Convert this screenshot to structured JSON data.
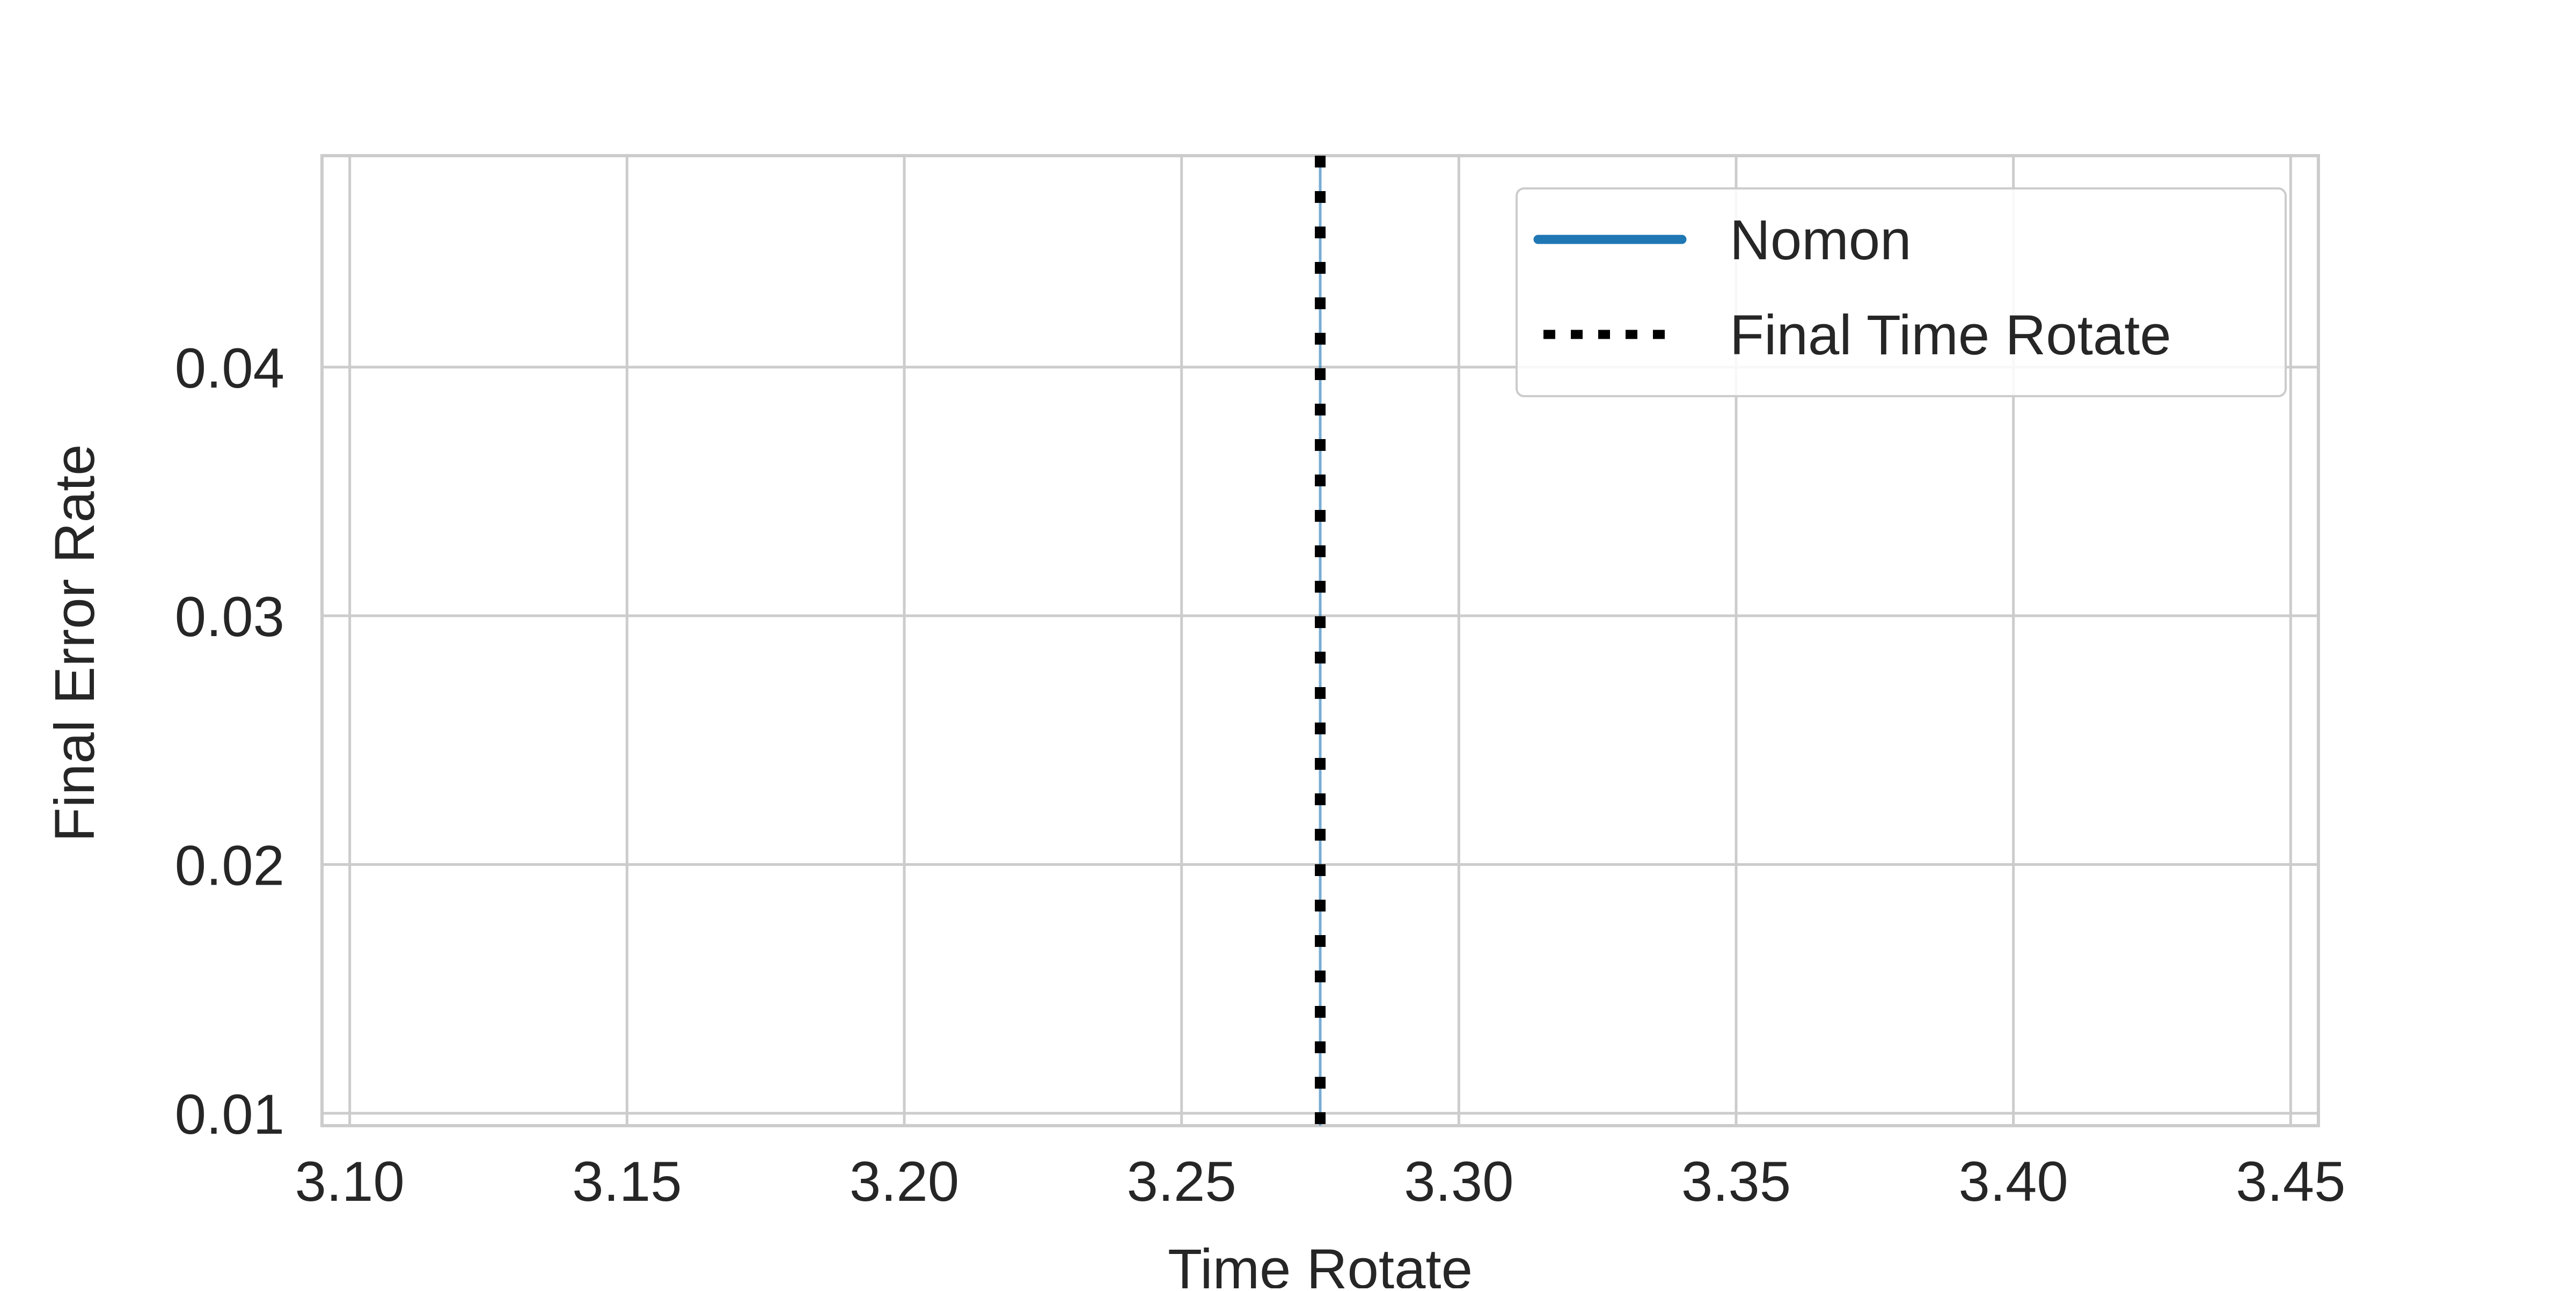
{
  "chart_data": {
    "type": "line",
    "title": "",
    "xlabel": "Time Rotate",
    "ylabel": "Final Error Rate",
    "xlim": [
      3.095,
      3.455
    ],
    "ylim": [
      0.0095,
      0.0485
    ],
    "x_ticks": [
      3.1,
      3.15,
      3.2,
      3.25,
      3.3,
      3.35,
      3.4,
      3.45
    ],
    "x_tick_labels": [
      "3.10",
      "3.15",
      "3.20",
      "3.25",
      "3.30",
      "3.35",
      "3.40",
      "3.45"
    ],
    "y_ticks": [
      0.01,
      0.02,
      0.03,
      0.04
    ],
    "y_tick_labels": [
      "0.01",
      "0.02",
      "0.03",
      "0.04"
    ],
    "grid": true,
    "legend_position": "top-right",
    "series": [
      {
        "name": "Nomon",
        "color": "#1f77b4",
        "style": "solid",
        "x": [
          3.275,
          3.275
        ],
        "y": [
          0.0095,
          0.0485
        ]
      }
    ],
    "reference_lines": [
      {
        "name": "Final Time Rotate",
        "orientation": "vertical",
        "x": 3.275,
        "color": "#000000",
        "style": "dotted"
      }
    ]
  }
}
